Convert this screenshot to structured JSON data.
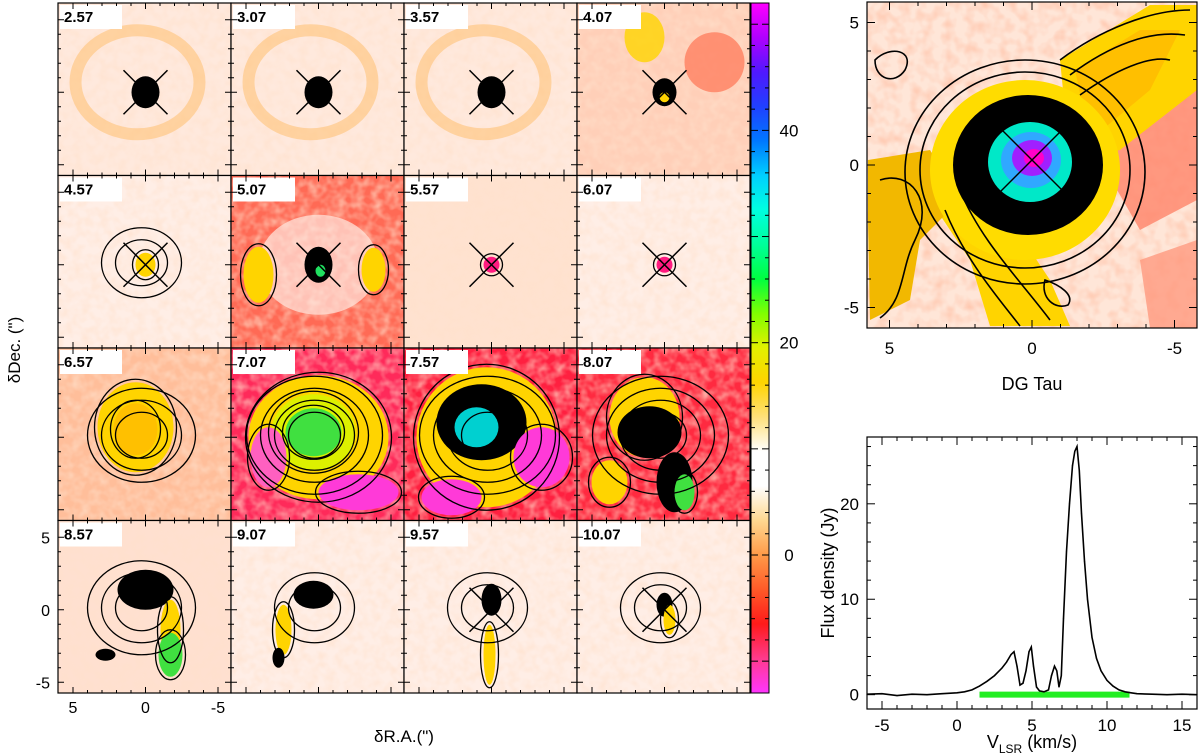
{
  "figure": {
    "colorbar": {
      "ticks": [
        {
          "value": 0,
          "label": "0"
        },
        {
          "value": 20,
          "label": "20"
        },
        {
          "value": 40,
          "label": "40"
        }
      ],
      "range": [
        -13,
        52
      ],
      "colors": [
        "#ff35ff",
        "#ff3a8c",
        "#ff1a1a",
        "#ff5a28",
        "#ff9a48",
        "#ffd890",
        "#ffffff",
        "#ffffff",
        "#ffe07a",
        "#ffd400",
        "#e2f000",
        "#80ff00",
        "#00ff40",
        "#00ff9a",
        "#00ffe0",
        "#00cfff",
        "#0078ff",
        "#2040ff",
        "#5018ff",
        "#b000ff",
        "#ff00ff"
      ]
    },
    "channel_maps": {
      "ylabel": "δDec. (\")",
      "xlabel": "δR.A.(\")",
      "x_ticks": [
        "5",
        "0",
        "-5"
      ],
      "y_ticks": [
        "5",
        "0",
        "-5"
      ],
      "panels": [
        {
          "label": "2.57"
        },
        {
          "label": "3.07"
        },
        {
          "label": "3.57"
        },
        {
          "label": "4.07"
        },
        {
          "label": "4.57"
        },
        {
          "label": "5.07"
        },
        {
          "label": "5.57"
        },
        {
          "label": "6.07"
        },
        {
          "label": "6.57"
        },
        {
          "label": "7.07"
        },
        {
          "label": "7.57"
        },
        {
          "label": "8.07"
        },
        {
          "label": "8.57"
        },
        {
          "label": "9.07"
        },
        {
          "label": "9.57"
        },
        {
          "label": "10.07"
        }
      ]
    },
    "integrated_map": {
      "title": "DG Tau",
      "x_ticks": [
        "5",
        "0",
        "-5"
      ],
      "y_ticks": [
        "5",
        "0",
        "-5"
      ]
    }
  },
  "chart_data": {
    "type": "line",
    "xlabel": "V",
    "xlabel_sub": "LSR",
    "xlabel_unit": " (km/s)",
    "ylabel": "Flux density (Jy)",
    "xlim": [
      -6,
      16
    ],
    "ylim": [
      -1.5,
      27
    ],
    "x_ticks": [
      -5,
      0,
      5,
      10,
      15
    ],
    "y_ticks": [
      0,
      10,
      20
    ],
    "series": [
      {
        "x": [
          -6,
          -5,
          -4,
          -3,
          -2,
          -1,
          0,
          0.5,
          1,
          1.5,
          2,
          2.5,
          3,
          3.3,
          3.6,
          3.8,
          4.0,
          4.2,
          4.4,
          4.6,
          4.8,
          4.95,
          5.1,
          5.3,
          5.5,
          5.8,
          6.1,
          6.3,
          6.5,
          6.65,
          6.8,
          6.95,
          7.1,
          7.3,
          7.5,
          7.7,
          7.85,
          8.0,
          8.15,
          8.3,
          8.5,
          8.7,
          9.0,
          9.3,
          9.6,
          10.0,
          10.4,
          10.8,
          11.2,
          11.6,
          12,
          13,
          14,
          15,
          16
        ],
        "y": [
          0.05,
          0.1,
          -0.1,
          0.05,
          0.0,
          0.1,
          0.2,
          0.3,
          0.5,
          0.9,
          1.4,
          2.0,
          2.8,
          3.4,
          4.2,
          4.5,
          3.0,
          1.0,
          1.2,
          2.5,
          4.5,
          5.0,
          3.0,
          0.8,
          0.4,
          0.3,
          0.5,
          2.0,
          3.0,
          2.5,
          0.8,
          2.0,
          8.0,
          15.0,
          20.0,
          24.0,
          25.5,
          26.0,
          23.5,
          19.0,
          14.0,
          10.0,
          6.0,
          3.8,
          2.5,
          1.5,
          0.9,
          0.5,
          0.3,
          0.2,
          0.1,
          0.05,
          0.0,
          0.05,
          0.0
        ]
      }
    ],
    "highlight_range": [
      1.5,
      11.5
    ],
    "highlight_color": "#22ee22"
  }
}
